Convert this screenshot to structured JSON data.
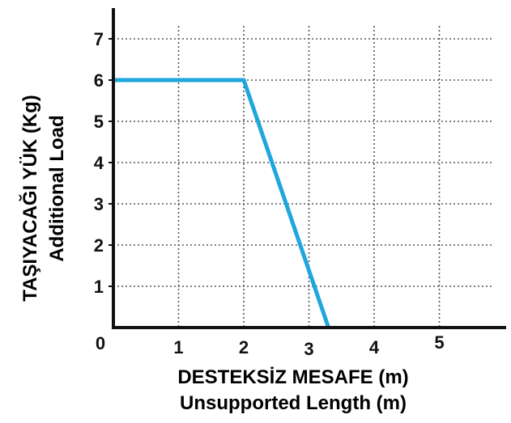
{
  "chart_data": {
    "type": "line",
    "title": "",
    "xlabel_lines": [
      "DESTEKSİZ MESAFE (m)",
      "Unsupported Length (m)"
    ],
    "ylabel_lines": [
      "TAŞIYACAĞI YÜK  (Kg)",
      "Additional Load"
    ],
    "xlim": [
      0,
      6
    ],
    "ylim": [
      0,
      7.5
    ],
    "x_ticks": [
      "0",
      "1",
      "2",
      "3",
      "4",
      "5"
    ],
    "y_ticks": [
      "1",
      "2",
      "3",
      "4",
      "5",
      "6",
      "7"
    ],
    "grid": true,
    "series": [
      {
        "x": [
          0,
          2,
          3.3
        ],
        "y": [
          6,
          6,
          0
        ]
      }
    ],
    "colors": {
      "line": "#1fa6dc",
      "axis_title": "#1b5ea6",
      "grid": "#555555",
      "axis": "#111111"
    }
  }
}
